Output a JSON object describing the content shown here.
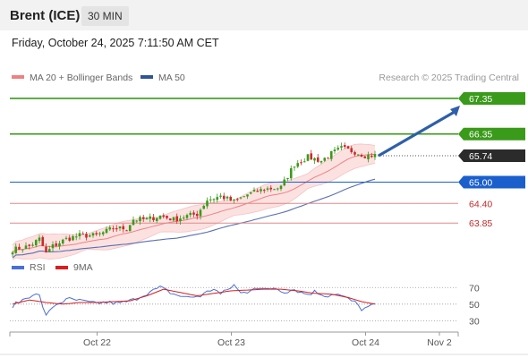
{
  "header": {
    "title": "Brent (ICE)",
    "timeframe": "30 MIN"
  },
  "datetime": "Friday, October 24, 2025 7:11:50 AM CET",
  "legend": {
    "items": [
      {
        "label": "MA 20 + Bollinger Bands",
        "color": "#f08080"
      },
      {
        "label": "MA 50",
        "color": "#2f5597"
      }
    ],
    "copyright": "Research © 2025 Trading Central"
  },
  "rsi_legend": {
    "items": [
      {
        "label": "RSI",
        "color": "#4a6fd8"
      },
      {
        "label": "9MA",
        "color": "#d81e1e"
      }
    ]
  },
  "chart_data": [
    {
      "type": "candlestick",
      "title": "Brent (ICE)",
      "ylim": [
        62.95,
        67.6
      ],
      "x_ticks": [
        {
          "label": "Oct 22",
          "index": 22
        },
        {
          "label": "Oct 23",
          "index": 62
        },
        {
          "label": "Oct 24",
          "index": 102
        },
        {
          "label": "Nov 2",
          "index": 124
        }
      ],
      "last_price": {
        "value": "65.74",
        "num": 65.74
      },
      "levels": [
        {
          "value": "67.35",
          "num": 67.35,
          "kind": "resistance"
        },
        {
          "value": "66.35",
          "num": 66.35,
          "kind": "resistance"
        },
        {
          "value": "65.00",
          "num": 65.0,
          "kind": "pivot"
        },
        {
          "value": "64.40",
          "num": 64.4,
          "kind": "support"
        },
        {
          "value": "63.85",
          "num": 63.85,
          "kind": "support"
        }
      ],
      "projection": {
        "from": 65.74,
        "to": 67.35
      },
      "anchors": [
        [
          0,
          63.1
        ],
        [
          5,
          63.2
        ],
        [
          8,
          63.4
        ],
        [
          10,
          63.0
        ],
        [
          12,
          63.2
        ],
        [
          16,
          63.4
        ],
        [
          20,
          63.5
        ],
        [
          25,
          63.5
        ],
        [
          30,
          63.7
        ],
        [
          34,
          63.7
        ],
        [
          36,
          63.95
        ],
        [
          40,
          63.95
        ],
        [
          44,
          64.05
        ],
        [
          48,
          63.95
        ],
        [
          52,
          64.05
        ],
        [
          55,
          64.1
        ],
        [
          58,
          64.5
        ],
        [
          62,
          64.6
        ],
        [
          66,
          64.45
        ],
        [
          70,
          64.65
        ],
        [
          75,
          64.8
        ],
        [
          80,
          64.85
        ],
        [
          84,
          65.5
        ],
        [
          88,
          65.7
        ],
        [
          92,
          65.6
        ],
        [
          95,
          65.8
        ],
        [
          98,
          65.95
        ],
        [
          102,
          65.85
        ],
        [
          105,
          65.75
        ],
        [
          108,
          65.75
        ]
      ],
      "ma20_band_width": 0.35
    },
    {
      "type": "line",
      "title": "RSI",
      "ylim": [
        25,
        80
      ],
      "y_ticks": [
        "70",
        "50",
        "30"
      ],
      "y_tick_values": [
        70,
        50,
        30
      ],
      "series": [
        {
          "name": "RSI",
          "anchors": [
            [
              0,
              48
            ],
            [
              3,
              55
            ],
            [
              6,
              62
            ],
            [
              8,
              60
            ],
            [
              10,
              35
            ],
            [
              12,
              47
            ],
            [
              14,
              52
            ],
            [
              17,
              56
            ],
            [
              20,
              54
            ],
            [
              24,
              51
            ],
            [
              28,
              52
            ],
            [
              32,
              51
            ],
            [
              36,
              55
            ],
            [
              40,
              63
            ],
            [
              44,
              70
            ],
            [
              48,
              62
            ],
            [
              52,
              58
            ],
            [
              56,
              60
            ],
            [
              60,
              69
            ],
            [
              62,
              62
            ],
            [
              64,
              67
            ],
            [
              66,
              73
            ],
            [
              68,
              63
            ],
            [
              70,
              65
            ],
            [
              72,
              71
            ],
            [
              75,
              67
            ],
            [
              78,
              70
            ],
            [
              81,
              65
            ],
            [
              84,
              68
            ],
            [
              86,
              64
            ],
            [
              88,
              62
            ],
            [
              90,
              65
            ],
            [
              92,
              62
            ],
            [
              94,
              60
            ],
            [
              96,
              63
            ],
            [
              98,
              60
            ],
            [
              100,
              56
            ],
            [
              102,
              52
            ],
            [
              104,
              44
            ],
            [
              106,
              46
            ],
            [
              108,
              50
            ]
          ]
        },
        {
          "name": "9MA",
          "anchors": [
            [
              0,
              50
            ],
            [
              5,
              55
            ],
            [
              10,
              52
            ],
            [
              15,
              50
            ],
            [
              20,
              52
            ],
            [
              25,
              52
            ],
            [
              30,
              53
            ],
            [
              35,
              54
            ],
            [
              40,
              60
            ],
            [
              45,
              68
            ],
            [
              50,
              64
            ],
            [
              55,
              60
            ],
            [
              60,
              63
            ],
            [
              65,
              66
            ],
            [
              70,
              67
            ],
            [
              75,
              68
            ],
            [
              80,
              68
            ],
            [
              85,
              66
            ],
            [
              90,
              63
            ],
            [
              95,
              62
            ],
            [
              100,
              58
            ],
            [
              104,
              53
            ],
            [
              108,
              50
            ]
          ]
        }
      ]
    }
  ]
}
